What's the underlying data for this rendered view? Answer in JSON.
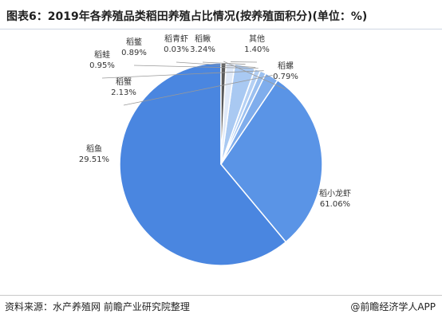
{
  "title": "图表6：2019年各养殖品类稻田养殖占比情况(按养殖面积分)(单位：%)",
  "source": "资料来源：水产养殖网 前瞻产业研究院整理",
  "brand": "@前瞻经济学人APP",
  "chart_data": {
    "type": "pie",
    "unit": "%",
    "slices": [
      {
        "name": "稻小龙虾",
        "value": 61.06,
        "value_label": "61.06%",
        "color": "#4a86e0"
      },
      {
        "name": "稻鱼",
        "value": 29.51,
        "value_label": "29.51%",
        "color": "#5a94e6"
      },
      {
        "name": "稻蟹",
        "value": 2.13,
        "value_label": "2.13%",
        "color": "#7fadec"
      },
      {
        "name": "稻蛙",
        "value": 0.95,
        "value_label": "0.95%",
        "color": "#9bc0f0"
      },
      {
        "name": "稻鳖",
        "value": 0.89,
        "value_label": "0.89%",
        "color": "#b4d0f4"
      },
      {
        "name": "稻青虾",
        "value": 0.03,
        "value_label": "0.03%",
        "color": "#c9ddf7"
      },
      {
        "name": "稻鳅",
        "value": 3.24,
        "value_label": "3.24%",
        "color": "#a9c9f2"
      },
      {
        "name": "其他",
        "value": 1.4,
        "value_label": "1.40%",
        "color": "#dfe9f8"
      },
      {
        "name": "稻螺",
        "value": 0.79,
        "value_label": "0.79%",
        "color": "#5a5a5a"
      }
    ]
  }
}
